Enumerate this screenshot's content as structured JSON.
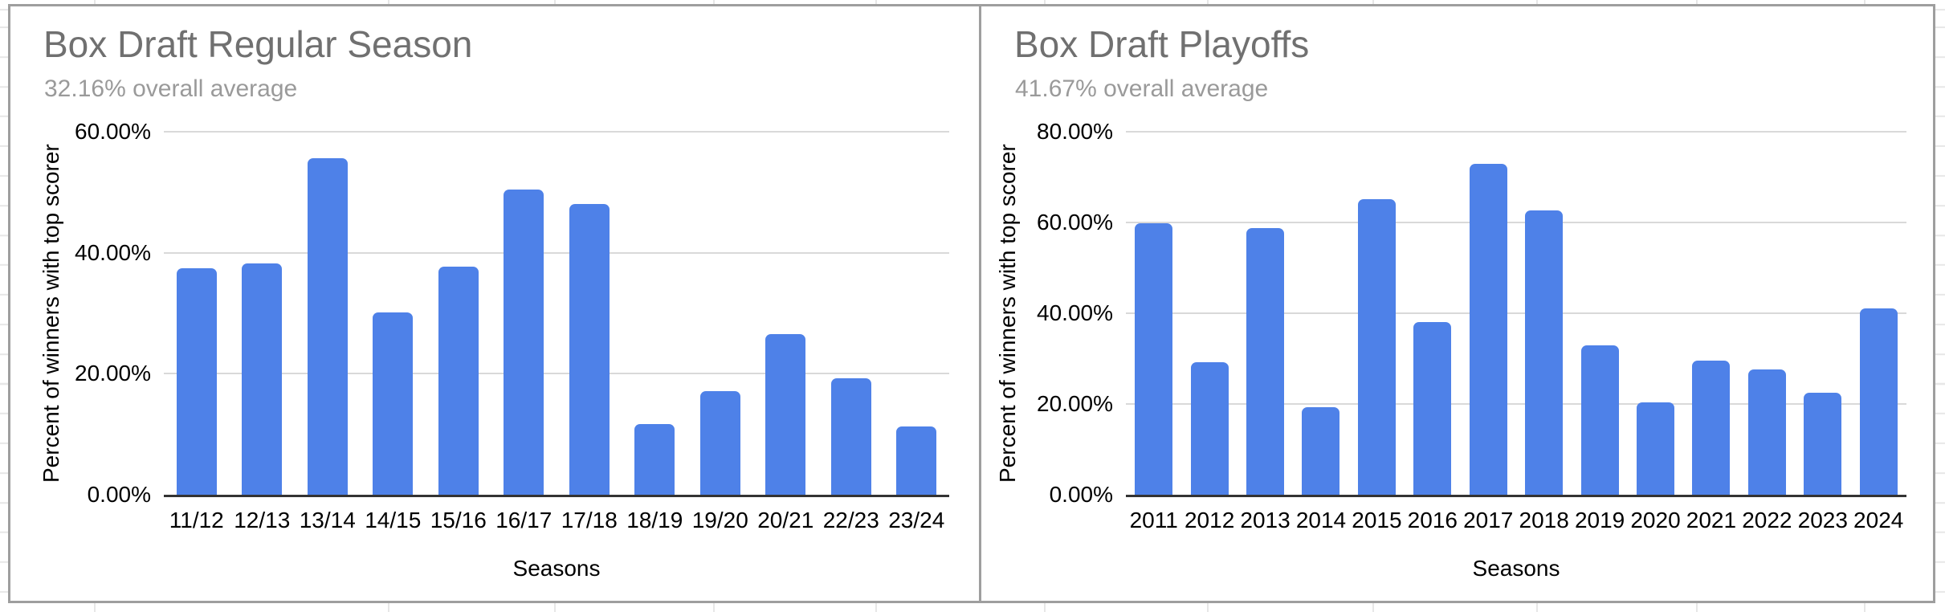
{
  "sheet": {
    "background": "#ffffff",
    "gridline_color": "#e7e7e7"
  },
  "chart_data": [
    {
      "type": "bar",
      "title": "Box Draft Regular Season",
      "subtitle": "32.16% overall average",
      "xlabel": "Seasons",
      "ylabel": "Percent of winners with top scorer",
      "categories": [
        "11/12",
        "12/13",
        "13/14",
        "14/15",
        "15/16",
        "16/17",
        "17/18",
        "18/19",
        "19/20",
        "20/21",
        "22/23",
        "23/24"
      ],
      "values": [
        37.4,
        38.2,
        55.6,
        30.2,
        37.7,
        50.5,
        48.1,
        11.7,
        17.1,
        26.5,
        19.3,
        11.3
      ],
      "value_unit": "%",
      "ylim": [
        0,
        60
      ],
      "y_tick_values": [
        0,
        20,
        40,
        60
      ],
      "y_tick_labels": [
        "0.00%",
        "20.00%",
        "40.00%",
        "60.00%"
      ],
      "bar_color": "#4e81e8",
      "grid": true,
      "legend": "none"
    },
    {
      "type": "bar",
      "title": "Box Draft Playoffs",
      "subtitle": "41.67% overall average",
      "xlabel": "Seasons",
      "ylabel": "Percent of winners with top scorer",
      "categories": [
        "2011",
        "2012",
        "2013",
        "2014",
        "2015",
        "2016",
        "2017",
        "2018",
        "2019",
        "2020",
        "2021",
        "2022",
        "2023",
        "2024"
      ],
      "values": [
        59.8,
        29.2,
        58.7,
        19.3,
        65.2,
        38.1,
        72.9,
        62.6,
        33.0,
        20.4,
        29.5,
        27.6,
        22.4,
        41.0
      ],
      "value_unit": "%",
      "ylim": [
        0,
        80
      ],
      "y_tick_values": [
        0,
        20,
        40,
        60,
        80
      ],
      "y_tick_labels": [
        "0.00%",
        "20.00%",
        "40.00%",
        "60.00%",
        "80.00%"
      ],
      "bar_color": "#4e81e8",
      "grid": true,
      "legend": "none"
    }
  ]
}
